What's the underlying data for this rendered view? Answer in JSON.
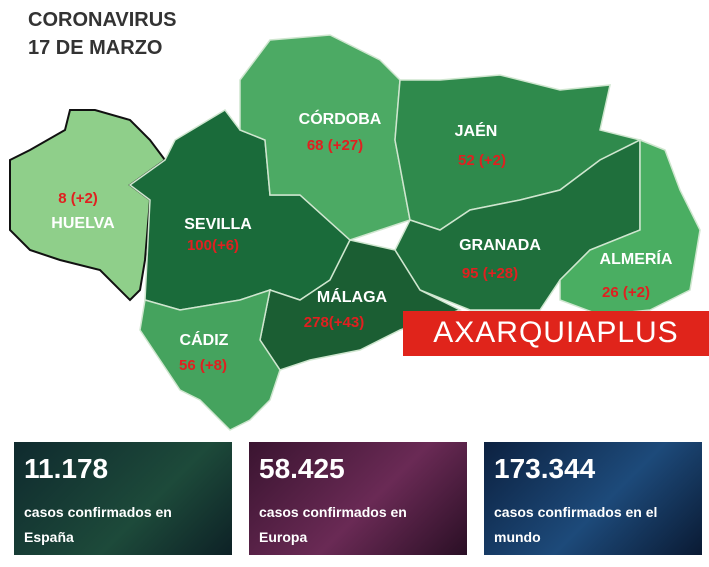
{
  "title": [
    "CORONAVIRUS",
    "17 DE MARZO"
  ],
  "provinces": [
    {
      "name": "HUELVA",
      "count": "8 (+2)"
    },
    {
      "name": "SEVILLA",
      "count": "100(+6)"
    },
    {
      "name": "CÓRDOBA",
      "count": "68 (+27)"
    },
    {
      "name": "JAÉN",
      "count": "52 (+2)"
    },
    {
      "name": "GRANADA",
      "count": "95 (+28)"
    },
    {
      "name": "ALMERÍA",
      "count": "26 (+2)"
    },
    {
      "name": "MÁLAGA",
      "count": "278(+43)"
    },
    {
      "name": "CÁDIZ",
      "count": "56 (+8)"
    }
  ],
  "logo": "AXARQUIAPLUS",
  "cards": [
    {
      "number": "11.178",
      "text": [
        "casos confirmados en",
        "España"
      ]
    },
    {
      "number": "58.425",
      "text": [
        "casos confirmados en",
        "Europa"
      ]
    },
    {
      "number": "173.344",
      "text": [
        "casos confirmados en el",
        "mundo"
      ]
    }
  ]
}
